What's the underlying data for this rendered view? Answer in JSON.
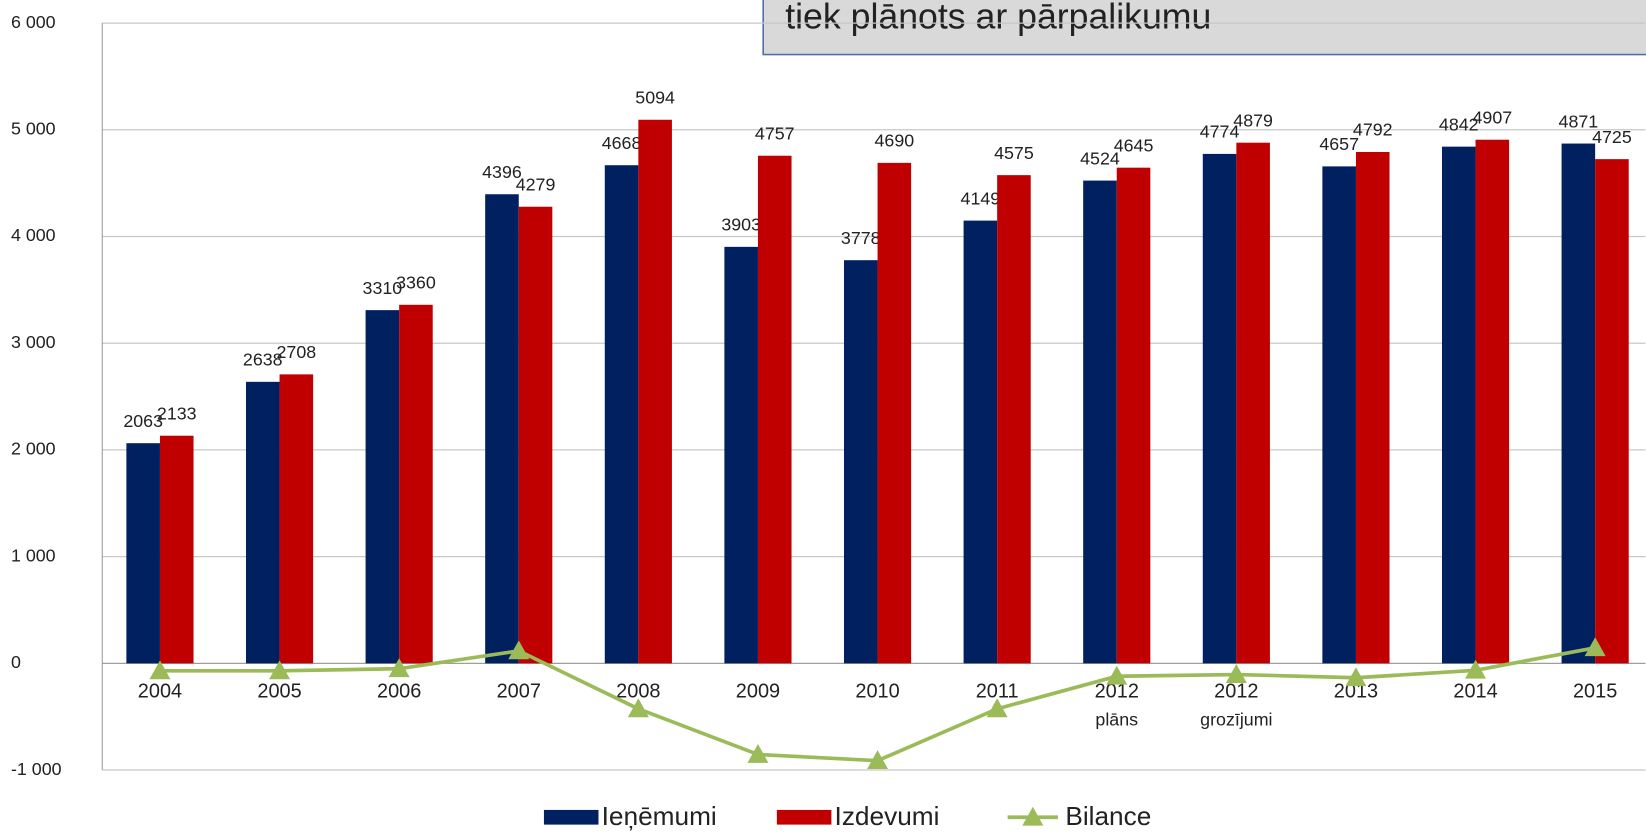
{
  "chart_data": {
    "type": "bar",
    "annotation": "tiek plānots ar pārpalikumu",
    "categories": [
      "2004",
      "2005",
      "2006",
      "2007",
      "2008",
      "2009",
      "2010",
      "2011",
      "2012\nplāns",
      "2012\ngrozījumi",
      "2013",
      "2014",
      "2015"
    ],
    "series": [
      {
        "name": "Ieņēmumi",
        "type": "bar",
        "color": "#002060",
        "values": [
          2063,
          2638,
          3310,
          4396,
          4668,
          3903,
          3778,
          4149,
          4524,
          4774,
          4657,
          4842,
          4871
        ]
      },
      {
        "name": "Izdevumi",
        "type": "bar",
        "color": "#c00000",
        "values": [
          2133,
          2708,
          3360,
          4279,
          5094,
          4757,
          4690,
          4575,
          4645,
          4879,
          4792,
          4907,
          4725
        ]
      },
      {
        "name": "Bilance",
        "type": "line",
        "color": "#9bbb59",
        "values": [
          -70,
          -70,
          -50,
          117,
          -426,
          -854,
          -912,
          -426,
          -121,
          -105,
          -135,
          -65,
          146
        ]
      }
    ],
    "ylim": [
      -1000,
      6000
    ],
    "yticks": [
      {
        "value": -1000,
        "label": "-1 000"
      },
      0,
      {
        "value": 1000,
        "label": "1 000"
      },
      {
        "value": 2000,
        "label": "2 000"
      },
      {
        "value": 3000,
        "label": "3 000"
      },
      {
        "value": 4000,
        "label": "4 000"
      },
      {
        "value": 5000,
        "label": "5 000"
      },
      {
        "value": 6000,
        "label": "6 000"
      }
    ],
    "grid": true
  }
}
